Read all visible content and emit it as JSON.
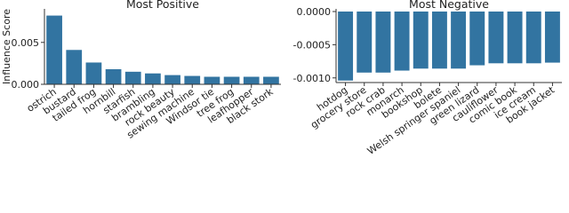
{
  "chart_data": [
    {
      "type": "bar",
      "title": "Most Positive",
      "y_label": "Influence Score",
      "categories": [
        "ostrich",
        "bustard",
        "tailed frog",
        "hornbill",
        "starfish",
        "brambling",
        "rock beauty",
        "sewing machine",
        "Windsor tie",
        "tree frog",
        "leafhopper",
        "black stork"
      ],
      "values": [
        0.0082,
        0.0041,
        0.0026,
        0.0018,
        0.0015,
        0.0013,
        0.0011,
        0.001,
        0.0009,
        0.0009,
        0.0009,
        0.0009
      ],
      "color": "#3274a1",
      "ylim": [
        0,
        0.009
      ],
      "yticks": [
        {
          "value": 0,
          "label": "0.000"
        },
        {
          "value": 0.005,
          "label": "0.005"
        }
      ]
    },
    {
      "type": "bar",
      "title": "Most Negative",
      "categories": [
        "hotdog",
        "grocery store",
        "rock crab",
        "monarch",
        "bookshop",
        "bolete",
        "Welsh springer spaniel",
        "green lizard",
        "cauliflower",
        "comic book",
        "ice cream",
        "book jacket"
      ],
      "values": [
        -0.00104,
        -0.00092,
        -0.00092,
        -0.00089,
        -0.00086,
        -0.00086,
        -0.00086,
        -0.00081,
        -0.00078,
        -0.00078,
        -0.00078,
        -0.00077
      ],
      "color": "#3274a1",
      "ylim": [
        -0.00107,
        4e-05
      ],
      "yticks": [
        {
          "value": 0,
          "label": "0.0000"
        },
        {
          "value": -0.0005,
          "label": "-0.0005"
        },
        {
          "value": -0.001,
          "label": "-0.0010"
        }
      ]
    }
  ]
}
